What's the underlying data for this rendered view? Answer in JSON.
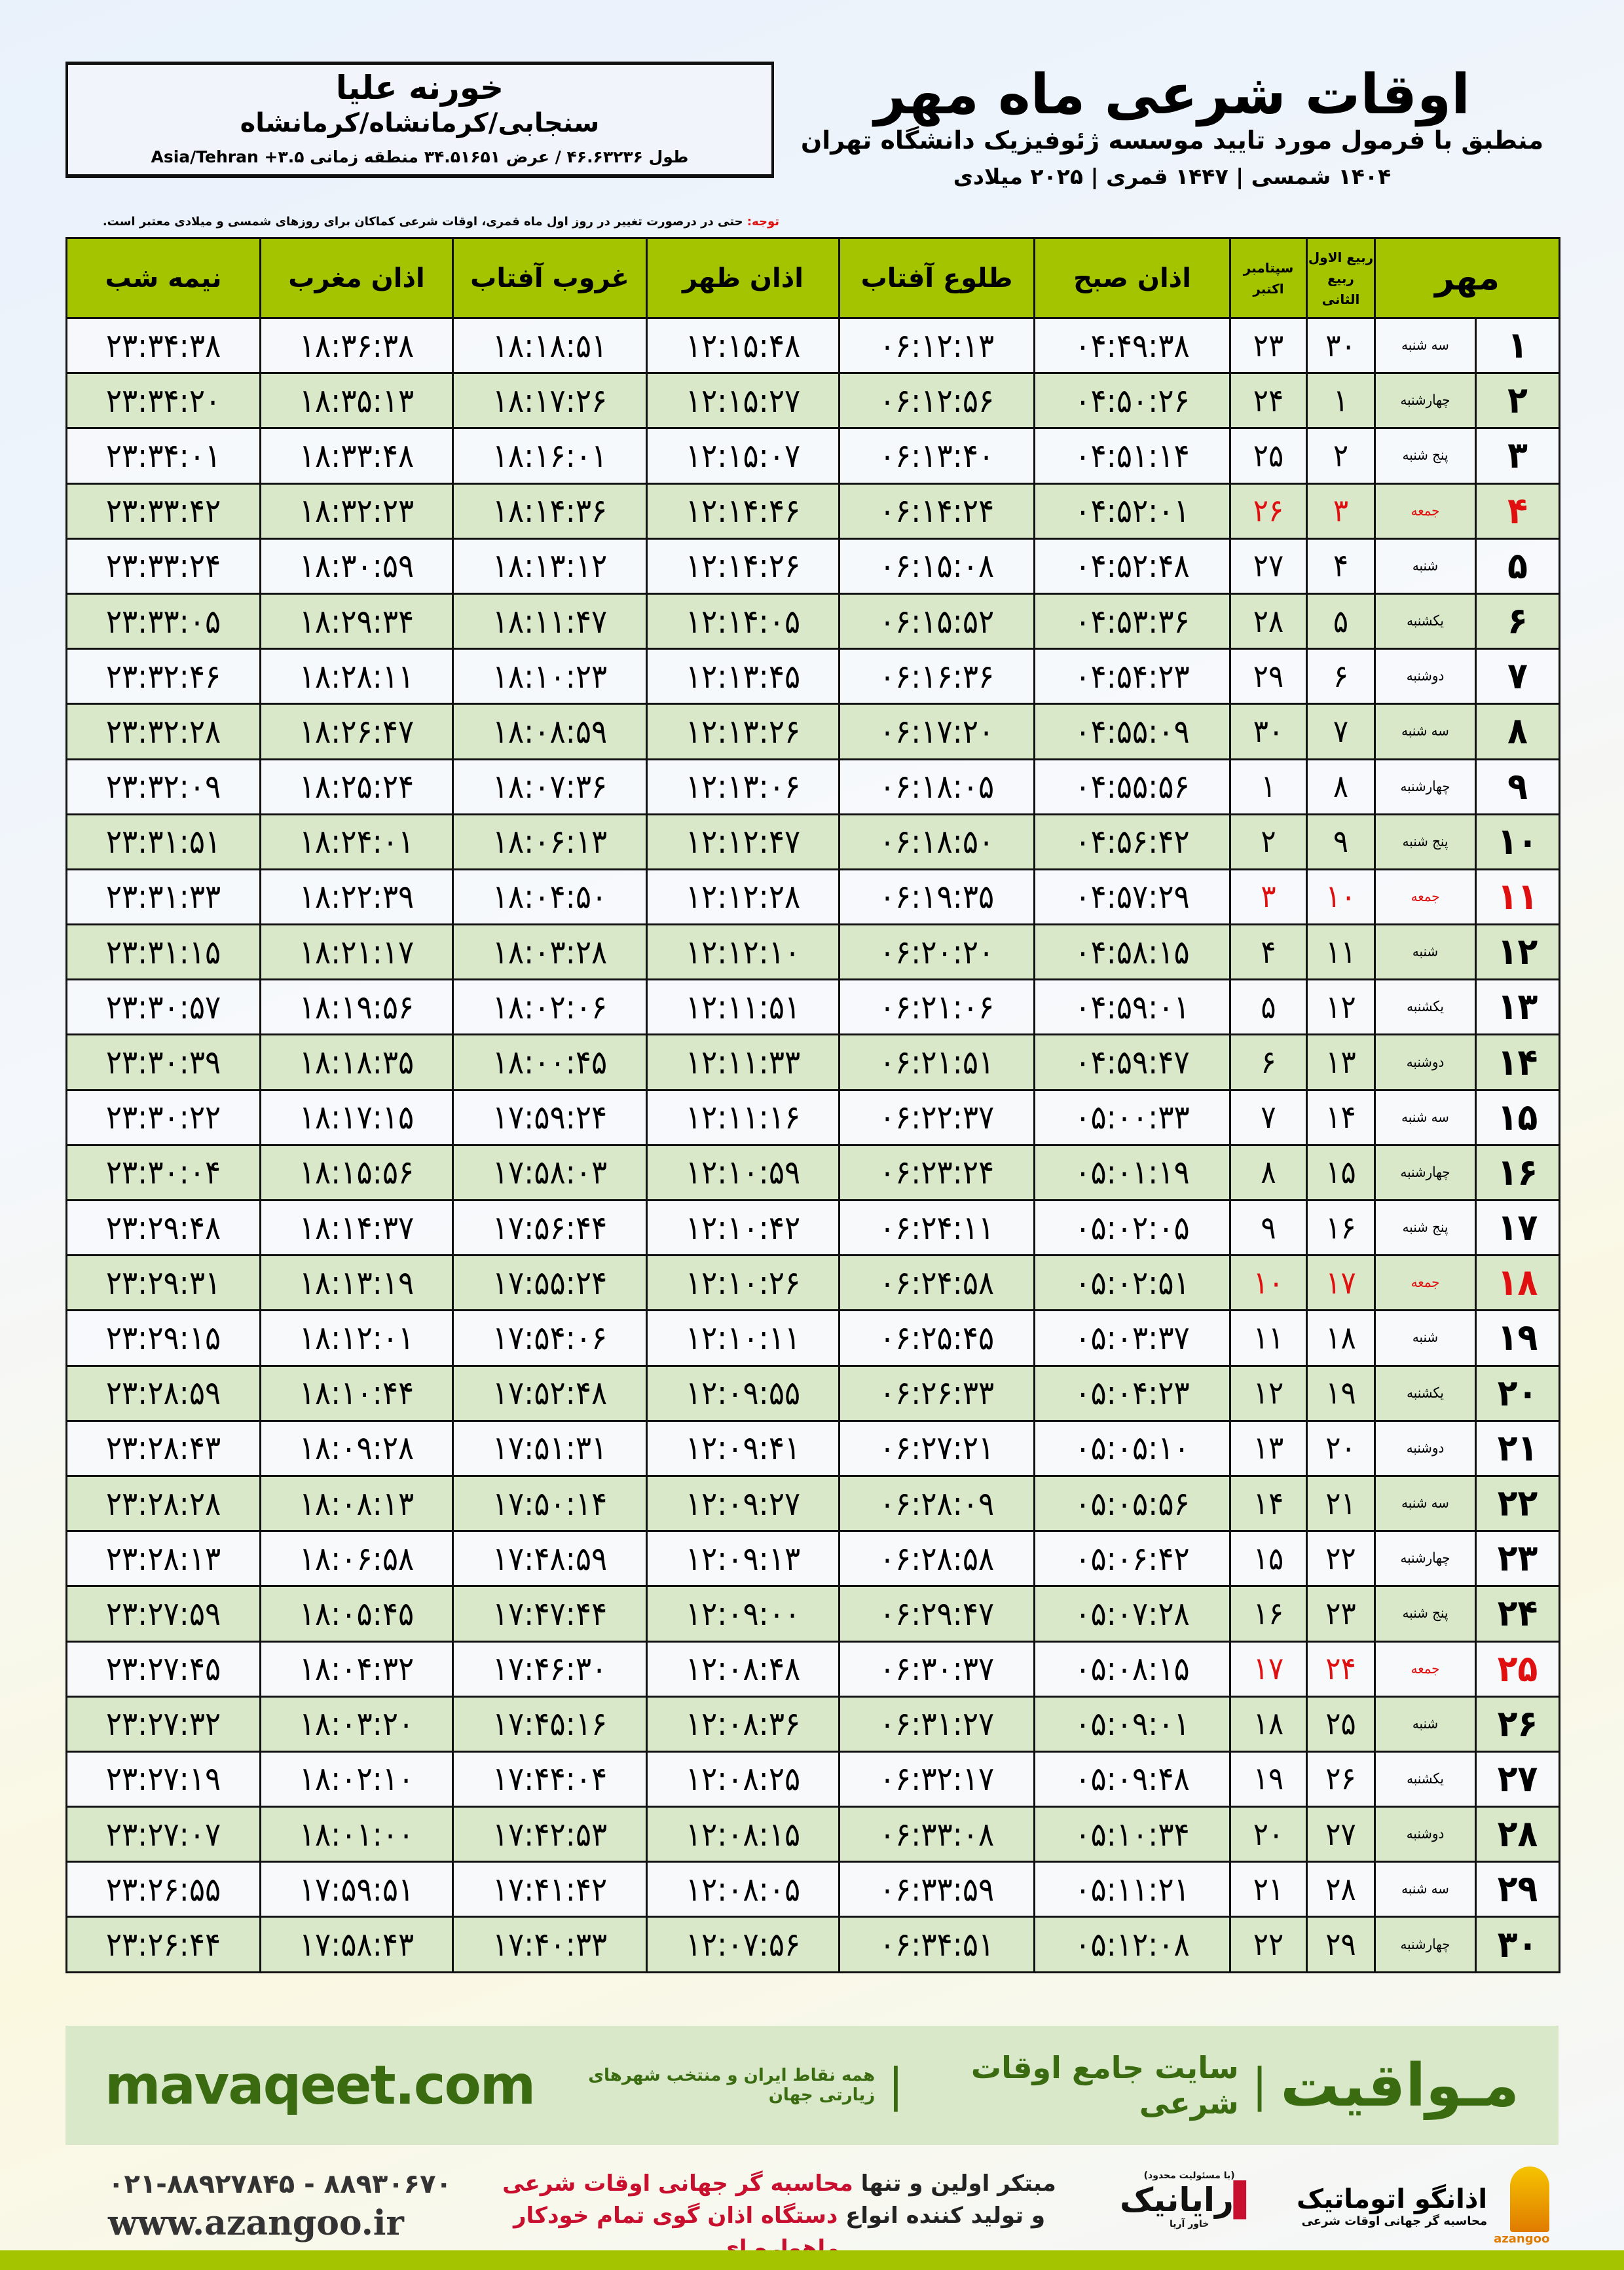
{
  "location": {
    "name": "خورنه علیا",
    "path": "سنجابی/کرمانشاه/کرمانشاه",
    "coords": "طول ۴۶.۶۳۲۳۶ / عرض ۳۴.۵۱۶۵۱ منطقه زمانی ۳.۵+ Asia/Tehran"
  },
  "header": {
    "title": "اوقات شرعی ماه مهر",
    "subtitle": "منطبق با فرمول مورد تایید موسسه ژئوفیزیک دانشگاه تهران",
    "years": "۱۴۰۴ شمسی | ۱۴۴۷ قمری | ۲۰۲۵ میلادی"
  },
  "note": {
    "label": "توجه:",
    "text": " حتی در درصورت تغییر در روز اول ماه قمری، اوقات شرعی کماکان برای روزهای شمسی و میلادی معتبر است."
  },
  "table": {
    "columns": {
      "day": "مهر",
      "hijri_top": "ربیع الاول",
      "hijri_bottom": "ربیع الثانی",
      "greg_top": "سپتامبر",
      "greg_bottom": "اکتبر",
      "fajr": "اذان صبح",
      "sunrise": "طلوع آفتاب",
      "dhuhr": "اذان ظهر",
      "sunset": "غروب آفتاب",
      "maghrib": "اذان مغرب",
      "midnight": "نیمه شب"
    },
    "holiday_color": "#e01010",
    "header_color": "#a5c400",
    "rows": [
      [
        "۱",
        "سه شنبه",
        "۳۰",
        "۲۳",
        "۰۴:۴۹:۳۸",
        "۰۶:۱۲:۱۳",
        "۱۲:۱۵:۴۸",
        "۱۸:۱۸:۵۱",
        "۱۸:۳۶:۳۸",
        "۲۳:۳۴:۳۸"
      ],
      [
        "۲",
        "چهارشنبه",
        "۱",
        "۲۴",
        "۰۴:۵۰:۲۶",
        "۰۶:۱۲:۵۶",
        "۱۲:۱۵:۲۷",
        "۱۸:۱۷:۲۶",
        "۱۸:۳۵:۱۳",
        "۲۳:۳۴:۲۰"
      ],
      [
        "۳",
        "پنج شنبه",
        "۲",
        "۲۵",
        "۰۴:۵۱:۱۴",
        "۰۶:۱۳:۴۰",
        "۱۲:۱۵:۰۷",
        "۱۸:۱۶:۰۱",
        "۱۸:۳۳:۴۸",
        "۲۳:۳۴:۰۱"
      ],
      [
        "۴",
        "جمعه",
        "۳",
        "۲۶",
        "۰۴:۵۲:۰۱",
        "۰۶:۱۴:۲۴",
        "۱۲:۱۴:۴۶",
        "۱۸:۱۴:۳۶",
        "۱۸:۳۲:۲۳",
        "۲۳:۳۳:۴۲"
      ],
      [
        "۵",
        "شنبه",
        "۴",
        "۲۷",
        "۰۴:۵۲:۴۸",
        "۰۶:۱۵:۰۸",
        "۱۲:۱۴:۲۶",
        "۱۸:۱۳:۱۲",
        "۱۸:۳۰:۵۹",
        "۲۳:۳۳:۲۴"
      ],
      [
        "۶",
        "یکشنبه",
        "۵",
        "۲۸",
        "۰۴:۵۳:۳۶",
        "۰۶:۱۵:۵۲",
        "۱۲:۱۴:۰۵",
        "۱۸:۱۱:۴۷",
        "۱۸:۲۹:۳۴",
        "۲۳:۳۳:۰۵"
      ],
      [
        "۷",
        "دوشنبه",
        "۶",
        "۲۹",
        "۰۴:۵۴:۲۳",
        "۰۶:۱۶:۳۶",
        "۱۲:۱۳:۴۵",
        "۱۸:۱۰:۲۳",
        "۱۸:۲۸:۱۱",
        "۲۳:۳۲:۴۶"
      ],
      [
        "۸",
        "سه شنبه",
        "۷",
        "۳۰",
        "۰۴:۵۵:۰۹",
        "۰۶:۱۷:۲۰",
        "۱۲:۱۳:۲۶",
        "۱۸:۰۸:۵۹",
        "۱۸:۲۶:۴۷",
        "۲۳:۳۲:۲۸"
      ],
      [
        "۹",
        "چهارشنبه",
        "۸",
        "۱",
        "۰۴:۵۵:۵۶",
        "۰۶:۱۸:۰۵",
        "۱۲:۱۳:۰۶",
        "۱۸:۰۷:۳۶",
        "۱۸:۲۵:۲۴",
        "۲۳:۳۲:۰۹"
      ],
      [
        "۱۰",
        "پنج شنبه",
        "۹",
        "۲",
        "۰۴:۵۶:۴۲",
        "۰۶:۱۸:۵۰",
        "۱۲:۱۲:۴۷",
        "۱۸:۰۶:۱۳",
        "۱۸:۲۴:۰۱",
        "۲۳:۳۱:۵۱"
      ],
      [
        "۱۱",
        "جمعه",
        "۱۰",
        "۳",
        "۰۴:۵۷:۲۹",
        "۰۶:۱۹:۳۵",
        "۱۲:۱۲:۲۸",
        "۱۸:۰۴:۵۰",
        "۱۸:۲۲:۳۹",
        "۲۳:۳۱:۳۳"
      ],
      [
        "۱۲",
        "شنبه",
        "۱۱",
        "۴",
        "۰۴:۵۸:۱۵",
        "۰۶:۲۰:۲۰",
        "۱۲:۱۲:۱۰",
        "۱۸:۰۳:۲۸",
        "۱۸:۲۱:۱۷",
        "۲۳:۳۱:۱۵"
      ],
      [
        "۱۳",
        "یکشنبه",
        "۱۲",
        "۵",
        "۰۴:۵۹:۰۱",
        "۰۶:۲۱:۰۶",
        "۱۲:۱۱:۵۱",
        "۱۸:۰۲:۰۶",
        "۱۸:۱۹:۵۶",
        "۲۳:۳۰:۵۷"
      ],
      [
        "۱۴",
        "دوشنبه",
        "۱۳",
        "۶",
        "۰۴:۵۹:۴۷",
        "۰۶:۲۱:۵۱",
        "۱۲:۱۱:۳۳",
        "۱۸:۰۰:۴۵",
        "۱۸:۱۸:۳۵",
        "۲۳:۳۰:۳۹"
      ],
      [
        "۱۵",
        "سه شنبه",
        "۱۴",
        "۷",
        "۰۵:۰۰:۳۳",
        "۰۶:۲۲:۳۷",
        "۱۲:۱۱:۱۶",
        "۱۷:۵۹:۲۴",
        "۱۸:۱۷:۱۵",
        "۲۳:۳۰:۲۲"
      ],
      [
        "۱۶",
        "چهارشنبه",
        "۱۵",
        "۸",
        "۰۵:۰۱:۱۹",
        "۰۶:۲۳:۲۴",
        "۱۲:۱۰:۵۹",
        "۱۷:۵۸:۰۳",
        "۱۸:۱۵:۵۶",
        "۲۳:۳۰:۰۴"
      ],
      [
        "۱۷",
        "پنج شنبه",
        "۱۶",
        "۹",
        "۰۵:۰۲:۰۵",
        "۰۶:۲۴:۱۱",
        "۱۲:۱۰:۴۲",
        "۱۷:۵۶:۴۴",
        "۱۸:۱۴:۳۷",
        "۲۳:۲۹:۴۸"
      ],
      [
        "۱۸",
        "جمعه",
        "۱۷",
        "۱۰",
        "۰۵:۰۲:۵۱",
        "۰۶:۲۴:۵۸",
        "۱۲:۱۰:۲۶",
        "۱۷:۵۵:۲۴",
        "۱۸:۱۳:۱۹",
        "۲۳:۲۹:۳۱"
      ],
      [
        "۱۹",
        "شنبه",
        "۱۸",
        "۱۱",
        "۰۵:۰۳:۳۷",
        "۰۶:۲۵:۴۵",
        "۱۲:۱۰:۱۱",
        "۱۷:۵۴:۰۶",
        "۱۸:۱۲:۰۱",
        "۲۳:۲۹:۱۵"
      ],
      [
        "۲۰",
        "یکشنبه",
        "۱۹",
        "۱۲",
        "۰۵:۰۴:۲۳",
        "۰۶:۲۶:۳۳",
        "۱۲:۰۹:۵۵",
        "۱۷:۵۲:۴۸",
        "۱۸:۱۰:۴۴",
        "۲۳:۲۸:۵۹"
      ],
      [
        "۲۱",
        "دوشنبه",
        "۲۰",
        "۱۳",
        "۰۵:۰۵:۱۰",
        "۰۶:۲۷:۲۱",
        "۱۲:۰۹:۴۱",
        "۱۷:۵۱:۳۱",
        "۱۸:۰۹:۲۸",
        "۲۳:۲۸:۴۳"
      ],
      [
        "۲۲",
        "سه شنبه",
        "۲۱",
        "۱۴",
        "۰۵:۰۵:۵۶",
        "۰۶:۲۸:۰۹",
        "۱۲:۰۹:۲۷",
        "۱۷:۵۰:۱۴",
        "۱۸:۰۸:۱۳",
        "۲۳:۲۸:۲۸"
      ],
      [
        "۲۳",
        "چهارشنبه",
        "۲۲",
        "۱۵",
        "۰۵:۰۶:۴۲",
        "۰۶:۲۸:۵۸",
        "۱۲:۰۹:۱۳",
        "۱۷:۴۸:۵۹",
        "۱۸:۰۶:۵۸",
        "۲۳:۲۸:۱۳"
      ],
      [
        "۲۴",
        "پنج شنبه",
        "۲۳",
        "۱۶",
        "۰۵:۰۷:۲۸",
        "۰۶:۲۹:۴۷",
        "۱۲:۰۹:۰۰",
        "۱۷:۴۷:۴۴",
        "۱۸:۰۵:۴۵",
        "۲۳:۲۷:۵۹"
      ],
      [
        "۲۵",
        "جمعه",
        "۲۴",
        "۱۷",
        "۰۵:۰۸:۱۵",
        "۰۶:۳۰:۳۷",
        "۱۲:۰۸:۴۸",
        "۱۷:۴۶:۳۰",
        "۱۸:۰۴:۳۲",
        "۲۳:۲۷:۴۵"
      ],
      [
        "۲۶",
        "شنبه",
        "۲۵",
        "۱۸",
        "۰۵:۰۹:۰۱",
        "۰۶:۳۱:۲۷",
        "۱۲:۰۸:۳۶",
        "۱۷:۴۵:۱۶",
        "۱۸:۰۳:۲۰",
        "۲۳:۲۷:۳۲"
      ],
      [
        "۲۷",
        "یکشنبه",
        "۲۶",
        "۱۹",
        "۰۵:۰۹:۴۸",
        "۰۶:۳۲:۱۷",
        "۱۲:۰۸:۲۵",
        "۱۷:۴۴:۰۴",
        "۱۸:۰۲:۱۰",
        "۲۳:۲۷:۱۹"
      ],
      [
        "۲۸",
        "دوشنبه",
        "۲۷",
        "۲۰",
        "۰۵:۱۰:۳۴",
        "۰۶:۳۳:۰۸",
        "۱۲:۰۸:۱۵",
        "۱۷:۴۲:۵۳",
        "۱۸:۰۱:۰۰",
        "۲۳:۲۷:۰۷"
      ],
      [
        "۲۹",
        "سه شنبه",
        "۲۸",
        "۲۱",
        "۰۵:۱۱:۲۱",
        "۰۶:۳۳:۵۹",
        "۱۲:۰۸:۰۵",
        "۱۷:۴۱:۴۲",
        "۱۷:۵۹:۵۱",
        "۲۳:۲۶:۵۵"
      ],
      [
        "۳۰",
        "چهارشنبه",
        "۲۹",
        "۲۲",
        "۰۵:۱۲:۰۸",
        "۰۶:۳۴:۵۱",
        "۱۲:۰۷:۵۶",
        "۱۷:۴۰:۳۳",
        "۱۷:۵۸:۴۳",
        "۲۳:۲۶:۴۴"
      ]
    ]
  },
  "banner": {
    "brand": "مـواقیت",
    "slogan": "سایت جامع اوقات شرعی",
    "sub": "همه نقاط ایران و منتخب شهرهای زیارتی جهان",
    "url": "mavaqeet.com"
  },
  "footer": {
    "phone": "۰۲۱-۸۸۹۲۷۸۴۵ - ۸۸۹۳۰۶۷۰",
    "website": "www.azangoo.ir",
    "desc1_a": "مبتکر اولین و تنها ",
    "desc1_b": "محاسبه گر جهانی اوقات شرعی",
    "desc2_a": "و تولید کننده انواع ",
    "desc2_b": "دستگاه اذان گوی تمام خودکار ماهواره ای",
    "logo_rayanik_small": "(با مسئولیت محدود)",
    "logo_rayanik": "رایانیک",
    "logo_rayanik_side": "خاور آریا",
    "logo_azangoo": "اذانگو اتوماتیک",
    "logo_azangoo_sub": "محاسبه گر جهانی اوقات شرعی",
    "logo_azangoo_en": "azangoo"
  }
}
